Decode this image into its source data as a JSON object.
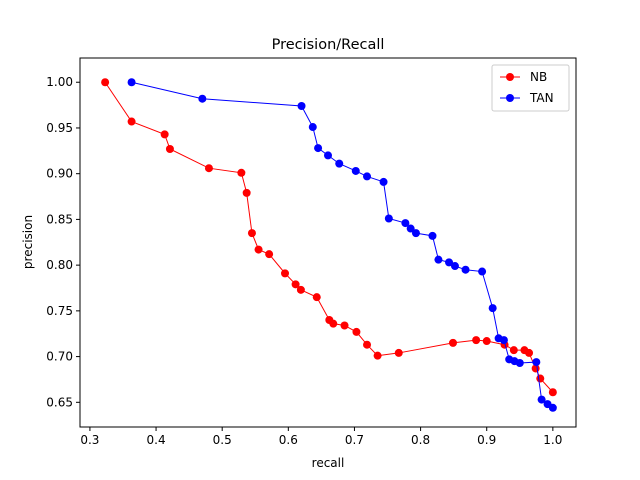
{
  "chart_data": {
    "type": "line",
    "title": "Precision/Recall",
    "xlabel": "recall",
    "ylabel": "precision",
    "xlim": [
      0.285,
      1.035
    ],
    "ylim": [
      0.623,
      1.0265
    ],
    "xticks": [
      0.3,
      0.4,
      0.5,
      0.6,
      0.7,
      0.8,
      0.9,
      1.0
    ],
    "xtick_labels": [
      "0.3",
      "0.4",
      "0.5",
      "0.6",
      "0.7",
      "0.8",
      "0.9",
      "1.0"
    ],
    "yticks": [
      0.65,
      0.7,
      0.75,
      0.8,
      0.85,
      0.9,
      0.95,
      1.0
    ],
    "ytick_labels": [
      "0.65",
      "0.70",
      "0.75",
      "0.80",
      "0.85",
      "0.90",
      "0.95",
      "1.00"
    ],
    "grid": false,
    "legend_position": "top-right",
    "series": [
      {
        "name": "NB",
        "color": "#ff0000",
        "marker": "circle",
        "x": [
          0.323,
          0.363,
          0.413,
          0.421,
          0.48,
          0.529,
          0.537,
          0.545,
          0.555,
          0.571,
          0.595,
          0.611,
          0.619,
          0.643,
          0.662,
          0.668,
          0.685,
          0.703,
          0.719,
          0.735,
          0.767,
          0.849,
          0.884,
          0.9,
          0.927,
          0.941,
          0.957,
          0.964,
          0.974,
          0.981,
          1.0
        ],
        "y": [
          1.0,
          0.957,
          0.943,
          0.927,
          0.906,
          0.901,
          0.879,
          0.835,
          0.817,
          0.812,
          0.791,
          0.779,
          0.773,
          0.765,
          0.74,
          0.736,
          0.734,
          0.727,
          0.713,
          0.701,
          0.704,
          0.715,
          0.718,
          0.717,
          0.713,
          0.707,
          0.707,
          0.704,
          0.687,
          0.676,
          0.661
        ]
      },
      {
        "name": "TAN",
        "color": "#0000ff",
        "marker": "circle",
        "x": [
          0.363,
          0.47,
          0.62,
          0.637,
          0.645,
          0.66,
          0.677,
          0.702,
          0.719,
          0.744,
          0.752,
          0.777,
          0.785,
          0.793,
          0.818,
          0.827,
          0.843,
          0.852,
          0.868,
          0.893,
          0.909,
          0.918,
          0.926,
          0.934,
          0.942,
          0.95,
          0.975,
          0.983,
          0.992,
          1.0
        ],
        "y": [
          1.0,
          0.982,
          0.974,
          0.951,
          0.928,
          0.92,
          0.911,
          0.903,
          0.897,
          0.891,
          0.851,
          0.846,
          0.84,
          0.835,
          0.832,
          0.806,
          0.803,
          0.799,
          0.795,
          0.793,
          0.753,
          0.72,
          0.718,
          0.697,
          0.695,
          0.693,
          0.694,
          0.653,
          0.648,
          0.644
        ]
      }
    ]
  }
}
